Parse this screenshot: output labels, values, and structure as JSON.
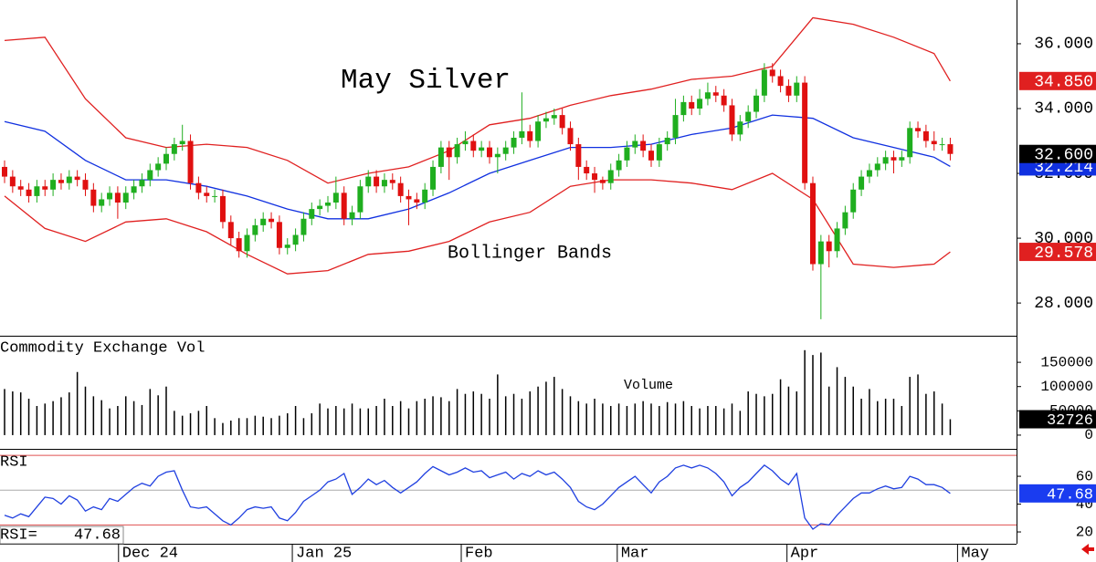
{
  "chart_data": [
    {
      "type": "candlestick",
      "title": "May Silver",
      "annotation": "Bollinger Bands",
      "xlim": [
        -0.565,
        125.2
      ],
      "ylim": [
        26.99,
        37.35
      ],
      "yticks": [
        {
          "value": 36,
          "label": "36.000"
        },
        {
          "value": 34,
          "label": "34.000"
        },
        {
          "value": 32,
          "label": "32.000"
        },
        {
          "value": 30,
          "label": "30.000"
        },
        {
          "value": 28,
          "label": "28.000"
        }
      ],
      "up_color": "#1fae1f",
      "down_color": "#e01010",
      "open": [
        32.2,
        31.9,
        31.6,
        31.5,
        31.3,
        31.6,
        31.5,
        31.8,
        31.7,
        31.9,
        31.8,
        31.5,
        31.0,
        31.2,
        31.4,
        31.1,
        31.4,
        31.6,
        31.8,
        32.1,
        32.3,
        32.6,
        32.9,
        33.0,
        31.7,
        31.4,
        31.3,
        31.3,
        30.5,
        30.0,
        29.6,
        30.1,
        30.4,
        30.6,
        30.5,
        29.7,
        29.8,
        30.1,
        30.6,
        30.9,
        31.0,
        31.1,
        31.4,
        30.6,
        30.8,
        31.6,
        31.9,
        31.6,
        31.8,
        31.7,
        31.3,
        31.2,
        31.1,
        31.5,
        32.2,
        32.8,
        32.5,
        32.9,
        33.0,
        32.7,
        32.8,
        32.5,
        32.6,
        32.8,
        33.1,
        33.3,
        33.0,
        33.6,
        33.7,
        33.8,
        33.4,
        32.9,
        32.2,
        32.0,
        31.8,
        31.7,
        32.1,
        32.4,
        32.8,
        33.0,
        32.7,
        32.4,
        32.9,
        33.1,
        33.8,
        34.2,
        34.0,
        34.3,
        34.5,
        34.4,
        34.1,
        33.2,
        33.6,
        33.9,
        34.4,
        35.2,
        35.0,
        34.7,
        34.4,
        34.8,
        31.7,
        29.2,
        29.9,
        29.6,
        30.3,
        30.8,
        31.5,
        31.9,
        32.1,
        32.3,
        32.5,
        32.4,
        32.5,
        33.4,
        33.3,
        33.0,
        32.9,
        32.9
      ],
      "high": [
        32.4,
        32.1,
        31.8,
        31.7,
        31.8,
        31.8,
        32.0,
        32.0,
        32.1,
        32.1,
        32.0,
        31.7,
        31.4,
        31.6,
        31.6,
        31.6,
        31.8,
        32.0,
        32.3,
        32.5,
        32.8,
        33.1,
        33.5,
        33.2,
        31.9,
        31.6,
        31.5,
        31.5,
        30.7,
        30.2,
        30.3,
        30.6,
        30.8,
        30.8,
        30.7,
        30.0,
        30.3,
        30.8,
        31.1,
        31.2,
        31.3,
        31.9,
        31.6,
        31.0,
        31.8,
        32.1,
        32.1,
        32.0,
        32.0,
        31.9,
        31.5,
        31.4,
        31.7,
        32.4,
        33.0,
        33.0,
        33.1,
        33.3,
        33.2,
        33.0,
        33.0,
        32.8,
        33.0,
        33.3,
        34.5,
        33.5,
        33.8,
        33.9,
        34.0,
        34.0,
        33.6,
        33.1,
        32.4,
        32.2,
        31.9,
        32.3,
        32.6,
        33.0,
        33.2,
        33.2,
        32.9,
        33.1,
        33.3,
        34.3,
        34.4,
        34.4,
        34.6,
        34.8,
        34.7,
        34.6,
        34.3,
        33.8,
        34.1,
        34.6,
        35.4,
        35.4,
        35.2,
        34.9,
        35.0,
        35.0,
        31.9,
        30.1,
        30.1,
        30.5,
        31.0,
        31.7,
        32.1,
        32.3,
        32.5,
        32.7,
        32.7,
        32.7,
        33.6,
        33.6,
        33.5,
        33.3,
        33.1,
        33.1
      ],
      "low": [
        31.7,
        31.4,
        31.3,
        31.1,
        31.1,
        31.3,
        31.3,
        31.5,
        31.5,
        31.6,
        31.3,
        30.8,
        30.8,
        31.0,
        30.6,
        30.9,
        31.2,
        31.4,
        31.6,
        31.9,
        32.1,
        32.4,
        32.7,
        31.5,
        31.2,
        31.1,
        31.1,
        30.3,
        29.8,
        29.4,
        29.4,
        29.9,
        30.2,
        30.3,
        29.5,
        29.5,
        29.6,
        29.9,
        30.4,
        30.7,
        30.8,
        30.9,
        30.4,
        30.4,
        30.6,
        31.4,
        31.4,
        31.4,
        31.5,
        31.1,
        30.4,
        30.9,
        30.9,
        31.3,
        32.0,
        31.8,
        32.3,
        32.7,
        32.5,
        32.5,
        32.3,
        32.0,
        32.4,
        32.6,
        32.9,
        32.8,
        32.8,
        33.4,
        33.5,
        33.2,
        32.7,
        31.8,
        31.8,
        31.4,
        31.5,
        31.5,
        31.9,
        32.2,
        32.6,
        32.5,
        32.2,
        32.2,
        32.7,
        32.9,
        33.6,
        33.8,
        33.8,
        34.1,
        34.2,
        33.9,
        33.0,
        33.0,
        33.4,
        33.7,
        34.2,
        34.8,
        34.5,
        34.2,
        34.2,
        31.5,
        29.0,
        27.5,
        29.1,
        29.4,
        30.1,
        30.6,
        31.3,
        31.7,
        31.9,
        32.1,
        32.0,
        32.2,
        32.3,
        33.1,
        32.8,
        32.7,
        32.7,
        32.4
      ],
      "close": [
        31.9,
        31.6,
        31.5,
        31.3,
        31.6,
        31.5,
        31.8,
        31.7,
        31.9,
        31.8,
        31.5,
        31.0,
        31.2,
        31.4,
        31.1,
        31.4,
        31.6,
        31.8,
        32.1,
        32.3,
        32.6,
        32.9,
        33.0,
        31.7,
        31.4,
        31.3,
        31.3,
        30.5,
        30.0,
        29.6,
        30.1,
        30.4,
        30.6,
        30.5,
        29.7,
        29.8,
        30.1,
        30.6,
        30.9,
        31.0,
        31.1,
        31.4,
        30.6,
        30.8,
        31.6,
        31.9,
        31.6,
        31.8,
        31.7,
        31.3,
        31.2,
        31.1,
        31.5,
        32.2,
        32.8,
        32.5,
        32.9,
        33.0,
        32.7,
        32.8,
        32.5,
        32.6,
        32.8,
        33.1,
        33.3,
        33.0,
        33.6,
        33.7,
        33.8,
        33.4,
        32.9,
        32.2,
        32.0,
        31.8,
        31.7,
        32.1,
        32.4,
        32.8,
        33.0,
        32.7,
        32.4,
        32.9,
        33.1,
        33.8,
        34.2,
        34.0,
        34.3,
        34.5,
        34.4,
        34.1,
        33.2,
        33.6,
        33.9,
        34.4,
        35.2,
        35.0,
        34.7,
        34.4,
        34.8,
        31.7,
        29.2,
        29.9,
        29.6,
        30.3,
        30.8,
        31.5,
        31.9,
        32.1,
        32.3,
        32.5,
        32.4,
        32.5,
        33.4,
        33.3,
        33.0,
        32.9,
        32.9,
        32.6
      ],
      "close_label": "32.600",
      "close_label_color": "#000000",
      "bands": [
        {
          "color": "#e02020",
          "x": [
            0,
            5,
            10,
            15,
            20,
            25,
            30,
            35,
            40,
            45,
            50,
            55,
            60,
            65,
            70,
            75,
            80,
            85,
            90,
            95,
            100,
            105,
            110,
            115,
            117
          ],
          "values": [
            36.1,
            36.2,
            34.3,
            33.1,
            32.8,
            32.9,
            32.8,
            32.4,
            31.7,
            32.0,
            32.2,
            32.7,
            33.5,
            33.7,
            34.1,
            34.4,
            34.6,
            34.9,
            35.0,
            35.3,
            36.8,
            36.6,
            36.2,
            35.7,
            34.85
          ],
          "last_label": "34.850"
        },
        {
          "color": "#1030e0",
          "x": [
            0,
            5,
            10,
            15,
            20,
            25,
            30,
            35,
            40,
            45,
            50,
            55,
            60,
            65,
            70,
            75,
            80,
            85,
            90,
            95,
            100,
            105,
            110,
            115,
            117
          ],
          "values": [
            33.6,
            33.3,
            32.4,
            31.8,
            31.8,
            31.6,
            31.3,
            30.9,
            30.6,
            30.6,
            30.9,
            31.4,
            32.0,
            32.4,
            32.8,
            32.8,
            32.9,
            33.2,
            33.4,
            33.8,
            33.7,
            33.1,
            32.8,
            32.5,
            32.214
          ],
          "last_label": "32.214"
        },
        {
          "color": "#e02020",
          "x": [
            0,
            5,
            10,
            15,
            20,
            25,
            30,
            35,
            40,
            45,
            50,
            55,
            60,
            65,
            70,
            75,
            80,
            85,
            90,
            95,
            100,
            105,
            110,
            115,
            117
          ],
          "values": [
            31.3,
            30.3,
            29.9,
            30.5,
            30.6,
            30.2,
            29.5,
            28.9,
            29.0,
            29.5,
            29.6,
            29.9,
            30.5,
            30.8,
            31.6,
            31.8,
            31.8,
            31.7,
            31.5,
            32.0,
            31.2,
            29.2,
            29.1,
            29.2,
            29.578
          ],
          "last_label": "29.578"
        }
      ]
    },
    {
      "type": "bar",
      "title": "Commodity Exchange Vol",
      "annotation": "Volume",
      "color": "#000000",
      "xlim": [
        -0.565,
        125.2
      ],
      "ylim": [
        -28300,
        200940
      ],
      "yticks": [
        150000,
        100000,
        50000,
        0
      ],
      "values": [
        95000,
        90000,
        88000,
        75000,
        60000,
        65000,
        70000,
        78000,
        88000,
        130000,
        100000,
        80000,
        72000,
        55000,
        60000,
        80000,
        70000,
        62000,
        95000,
        82000,
        100000,
        50000,
        40000,
        45000,
        50000,
        60000,
        35000,
        25000,
        30000,
        35000,
        35000,
        40000,
        38000,
        35000,
        40000,
        45000,
        60000,
        35000,
        45000,
        65000,
        55000,
        60000,
        55000,
        65000,
        55000,
        55000,
        60000,
        75000,
        60000,
        70000,
        55000,
        70000,
        75000,
        80000,
        78000,
        70000,
        95000,
        85000,
        90000,
        85000,
        75000,
        125000,
        80000,
        85000,
        75000,
        90000,
        100000,
        110000,
        120000,
        95000,
        80000,
        70000,
        65000,
        75000,
        65000,
        60000,
        65000,
        60000,
        65000,
        70000,
        65000,
        60000,
        68000,
        65000,
        70000,
        60000,
        55000,
        60000,
        60000,
        55000,
        65000,
        50000,
        90000,
        85000,
        80000,
        85000,
        115000,
        100000,
        90000,
        175000,
        165000,
        170000,
        100000,
        140000,
        120000,
        100000,
        75000,
        95000,
        70000,
        75000,
        75000,
        60000,
        120000,
        125000,
        85000,
        90000,
        65000,
        32726
      ],
      "last_label": "32726",
      "last_label_color": "#000000"
    },
    {
      "type": "line",
      "title": "RSI",
      "readout": "RSI=",
      "color": "#2040e0",
      "xlim": [
        -0.565,
        125.2
      ],
      "ylim": [
        11.5,
        78.4
      ],
      "yticks": [
        60,
        40,
        20
      ],
      "ref_lines": [
        {
          "value": 75,
          "color": "#e05050"
        },
        {
          "value": 50,
          "color": "#aaaaaa"
        },
        {
          "value": 25,
          "color": "#e05050"
        }
      ],
      "xticks": [
        {
          "value": 14.1,
          "label": "Dec 24"
        },
        {
          "value": 35.6,
          "label": "Jan 25"
        },
        {
          "value": 56.5,
          "label": "Feb"
        },
        {
          "value": 75.8,
          "label": "Mar"
        },
        {
          "value": 96.8,
          "label": "Apr"
        },
        {
          "value": 117.9,
          "label": "May"
        }
      ],
      "values": [
        32,
        30,
        33,
        31,
        38,
        45,
        44,
        40,
        46,
        43,
        35,
        38,
        36,
        44,
        42,
        47,
        52,
        55,
        53,
        60,
        63,
        64,
        50,
        38,
        37,
        38,
        33,
        28,
        25,
        30,
        36,
        38,
        37,
        38,
        30,
        28,
        34,
        42,
        46,
        50,
        56,
        58,
        62,
        47,
        52,
        58,
        54,
        57,
        52,
        48,
        52,
        56,
        62,
        67,
        64,
        61,
        63,
        66,
        63,
        64,
        59,
        61,
        63,
        58,
        62,
        60,
        64,
        61,
        63,
        58,
        52,
        42,
        38,
        36,
        40,
        46,
        52,
        56,
        60,
        54,
        48,
        56,
        60,
        66,
        68,
        66,
        68,
        66,
        62,
        56,
        46,
        52,
        56,
        62,
        68,
        64,
        58,
        54,
        62,
        30,
        22,
        26,
        25,
        32,
        38,
        44,
        48,
        48,
        51,
        53,
        51,
        52,
        60,
        58,
        54,
        54,
        52,
        47.68
      ],
      "last_label": "47.68",
      "last_label_color": "#1a3cf0"
    }
  ]
}
